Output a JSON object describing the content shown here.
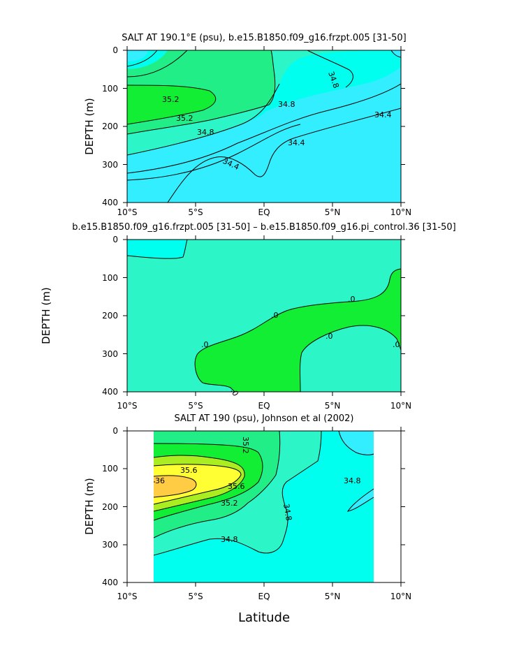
{
  "colors": {
    "cyan_light": "#33eeff",
    "aqua": "#00ffee",
    "teal": "#2cf5c8",
    "green_pale": "#22ee88",
    "green": "#11ee33",
    "yellow_green": "#aaee22",
    "yellow": "#ffff33",
    "orange": "#ffcc44",
    "line": "#000000"
  },
  "chart_data": [
    {
      "type": "heatmap",
      "title": "SALT AT 190.1°E (psu), b.e15.B1850.f09_g16.frzpt.005 [31-50]",
      "xlabel": "",
      "ylabel": "DEPTH (m)",
      "xlim": [
        -10,
        10
      ],
      "ylim": [
        400,
        0
      ],
      "x_ticks": [
        "10°S",
        "5°S",
        "EQ",
        "5°N",
        "10°N"
      ],
      "y_ticks": [
        "0",
        "100",
        "200",
        "300",
        "400"
      ],
      "contour_labels": [
        "35.2",
        "35.2",
        "34.8",
        "34.8",
        "34.8",
        "34.4",
        "34.4",
        "34.4"
      ]
    },
    {
      "type": "heatmap",
      "title": "b.e15.B1850.f09_g16.frzpt.005 [31-50] – b.e15.B1850.f09_g16.pi_control.36 [31-50]",
      "xlabel": "",
      "ylabel": "DEPTH (m)",
      "xlim": [
        -10,
        10
      ],
      "ylim": [
        400,
        0
      ],
      "x_ticks": [
        "10°S",
        "5°S",
        "EQ",
        "5°N",
        "10°N"
      ],
      "y_ticks": [
        "0",
        "100",
        "200",
        "300",
        "400"
      ],
      "contour_labels": [
        ".0",
        ".0",
        ".0",
        ".0",
        ".0",
        ".0"
      ]
    },
    {
      "type": "heatmap",
      "title": "SALT AT 190 (psu), Johnson et al (2002)",
      "xlabel": "Latitude",
      "ylabel": "DEPTH (m)",
      "xlim": [
        -10,
        10
      ],
      "ylim": [
        400,
        0
      ],
      "x_ticks": [
        "10°S",
        "5°S",
        "EQ",
        "5°N",
        "10°N"
      ],
      "y_ticks": [
        "0",
        "100",
        "200",
        "300",
        "400"
      ],
      "contour_labels": [
        "35.6",
        "35.2",
        "36",
        "35.6",
        "35.2",
        "34.8",
        "34.8",
        "34.8"
      ]
    }
  ]
}
